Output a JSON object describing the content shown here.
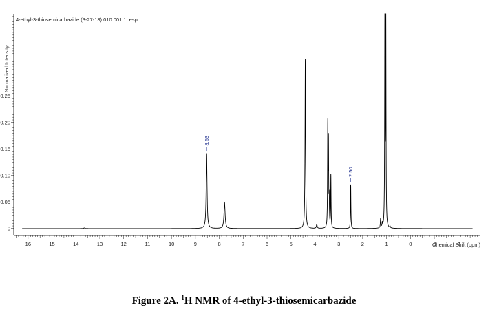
{
  "chart_data": {
    "type": "line",
    "title": "4-ethyl-3-thiosemicarbazide (3-27-13).010.001.1r.esp",
    "xlabel": "Chemical Shift (ppm)",
    "ylabel": "Normalized Intensity",
    "xlim": [
      16.6,
      -2.9
    ],
    "ylim": [
      -0.004,
      0.405
    ],
    "x_ticks": [
      16,
      15,
      14,
      13,
      12,
      11,
      10,
      9,
      8,
      7,
      6,
      5,
      4,
      3,
      2,
      1,
      0,
      -1,
      -2
    ],
    "y_ticks": [
      0,
      0.05,
      0.1,
      0.15,
      0.2,
      0.25
    ],
    "y_tick_labels": [
      "0",
      "0.05",
      "0.10",
      "0.15",
      "0.20",
      "0.25"
    ],
    "series": [
      {
        "peaks": [
          {
            "x": 13.65,
            "y": 0.0012,
            "w": 0.03
          },
          {
            "x": 8.53,
            "y": 0.142,
            "w": 0.022
          },
          {
            "x": 7.78,
            "y": 0.049,
            "w": 0.028
          },
          {
            "x": 4.4,
            "y": 0.32,
            "w": 0.014
          },
          {
            "x": 3.92,
            "y": 0.008,
            "w": 0.02
          },
          {
            "x": 3.46,
            "y": 0.19,
            "w": 0.01
          },
          {
            "x": 3.43,
            "y": 0.155,
            "w": 0.01
          },
          {
            "x": 3.4,
            "y": 0.05,
            "w": 0.01
          },
          {
            "x": 3.33,
            "y": 0.1,
            "w": 0.01
          },
          {
            "x": 2.5,
            "y": 0.083,
            "w": 0.01
          },
          {
            "x": 1.25,
            "y": 0.017,
            "w": 0.012
          },
          {
            "x": 1.18,
            "y": 0.008,
            "w": 0.012
          },
          {
            "x": 1.07,
            "y": 0.41,
            "w": 0.01
          },
          {
            "x": 1.03,
            "y": 0.41,
            "w": 0.01
          },
          {
            "x": 0.85,
            "y": 0.003,
            "w": 0.012
          }
        ]
      }
    ],
    "annotations": [
      {
        "text": "8.53",
        "x": 8.53
      },
      {
        "text": "2.50",
        "x": 2.5
      }
    ]
  },
  "caption": {
    "prefix": "Figure 2A.",
    "sup": "1",
    "rest": "H NMR of 4-ethyl-3-thiosemicarbazide"
  }
}
